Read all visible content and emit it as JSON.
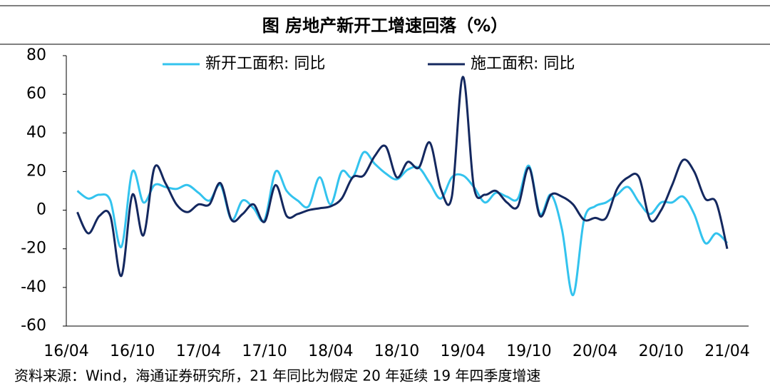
{
  "chart_data": {
    "type": "line",
    "title": "图  房地产新开工增速回落（%）",
    "source": "资料来源：Wind，海通证券研究所，21 年同比为假定 20 年延续 19 年四季度增速",
    "categories": [
      "16/04",
      null,
      null,
      null,
      null,
      null,
      "16/10",
      null,
      null,
      null,
      null,
      null,
      "17/04",
      null,
      null,
      null,
      null,
      null,
      "17/10",
      null,
      null,
      null,
      null,
      null,
      "18/04",
      null,
      null,
      null,
      null,
      null,
      "18/10",
      null,
      null,
      null,
      null,
      null,
      "19/04",
      null,
      null,
      null,
      null,
      null,
      "19/10",
      null,
      null,
      null,
      null,
      null,
      "20/04",
      null,
      null,
      null,
      null,
      null,
      "20/10",
      null,
      null,
      null,
      null,
      null,
      "21/04"
    ],
    "series": [
      {
        "name": "新开工面积: 同比",
        "color": "#33c3ee",
        "values": [
          null,
          10,
          6,
          8,
          5,
          -19,
          20,
          4,
          13,
          12,
          11,
          13,
          9,
          5,
          13,
          -5,
          5,
          1,
          -5,
          20,
          10,
          5,
          2,
          17,
          3,
          20,
          17,
          30,
          24,
          19,
          16,
          21,
          22,
          14,
          6,
          17,
          18,
          12,
          4,
          9,
          7,
          6,
          23,
          -2,
          8,
          -10,
          -44,
          -5,
          2,
          4,
          8,
          12,
          4,
          -2,
          4,
          4,
          7,
          -2,
          -17,
          -12,
          -17
        ]
      },
      {
        "name": "施工面积: 同比",
        "color": "#14285f",
        "values": [
          null,
          -1,
          -12,
          -3,
          -3,
          -34,
          8,
          -13,
          22,
          14,
          3,
          -1,
          3,
          3,
          14,
          -5,
          -2,
          3,
          -6,
          13,
          -3,
          -2,
          0,
          1,
          2,
          6,
          17,
          18,
          28,
          33,
          17,
          25,
          22,
          35,
          11,
          7,
          69,
          12,
          8,
          10,
          4,
          2,
          22,
          -3,
          8,
          7,
          3,
          -5,
          -4,
          -4,
          11,
          17,
          17,
          -5,
          0,
          13,
          26,
          20,
          6,
          4,
          -20
        ]
      }
    ],
    "ylim": [
      -60,
      80
    ],
    "yticks": [
      -60,
      -40,
      -20,
      0,
      20,
      40,
      60,
      80
    ],
    "legend": "top"
  }
}
